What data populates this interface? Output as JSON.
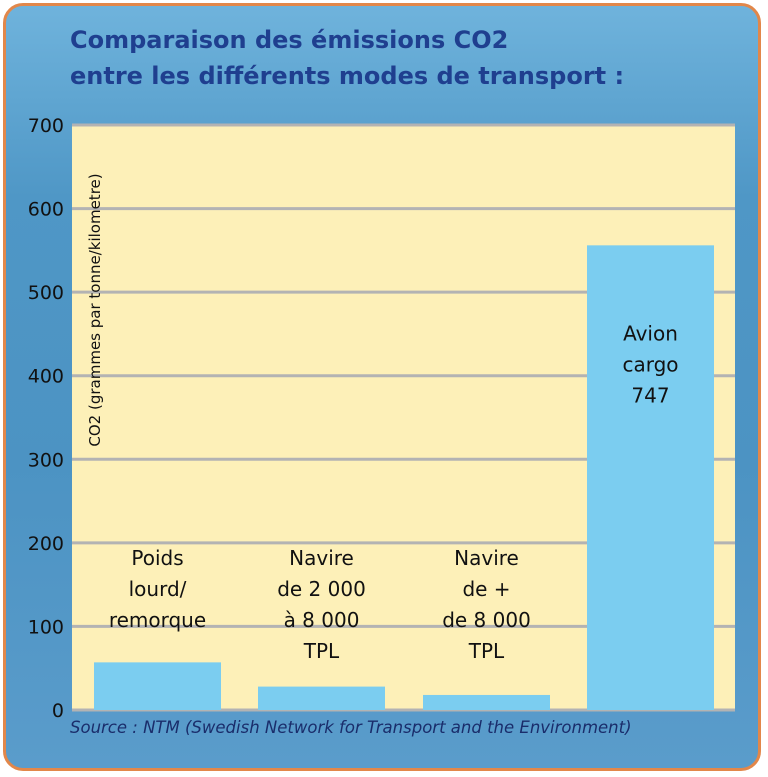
{
  "title": {
    "line1": "Comparaison des émissions CO2",
    "line2": "entre les différents modes de transport :"
  },
  "source": "Source : NTM (Swedish Network for Transport and the Environment)",
  "colors": {
    "bar": "#7bcdf0",
    "plot_background": "#fdf0b8",
    "gridline": "#b3b3b3",
    "frame_border": "#e2874a",
    "title": "#1f3f8f"
  },
  "chart_data": {
    "type": "bar",
    "title": "Comparaison des émissions CO2 entre les différents modes de transport :",
    "ylabel": "CO2 (grammes par tonne/kilometre)",
    "xlabel": "",
    "ylim": [
      0,
      700
    ],
    "yticks": [
      0,
      100,
      200,
      300,
      400,
      500,
      600,
      700
    ],
    "grid": true,
    "categories": [
      [
        "Poids",
        "lourd/",
        "remorque"
      ],
      [
        "Navire",
        "de 2 000",
        "à 8 000",
        "TPL"
      ],
      [
        "Navire",
        "de +",
        "de 8 000",
        "TPL"
      ],
      [
        "Avion",
        "cargo",
        "747"
      ]
    ],
    "values": [
      57,
      28,
      18,
      556
    ]
  }
}
